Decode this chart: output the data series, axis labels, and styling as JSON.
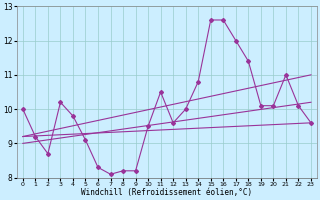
{
  "xlabel": "Windchill (Refroidissement éolien,°C)",
  "background_color": "#cceeff",
  "line_color": "#993399",
  "grid_color": "#99cccc",
  "xlim": [
    -0.5,
    23.5
  ],
  "ylim": [
    8,
    13
  ],
  "yticks": [
    8,
    9,
    10,
    11,
    12,
    13
  ],
  "xticks": [
    0,
    1,
    2,
    3,
    4,
    5,
    6,
    7,
    8,
    9,
    10,
    11,
    12,
    13,
    14,
    15,
    16,
    17,
    18,
    19,
    20,
    21,
    22,
    23
  ],
  "lines": [
    {
      "x": [
        0,
        1,
        2,
        3,
        4,
        5,
        6,
        7,
        8,
        9,
        10,
        11,
        12,
        13,
        14,
        15,
        16,
        17,
        18,
        19,
        20,
        21,
        22,
        23
      ],
      "y": [
        10.0,
        9.2,
        8.7,
        10.2,
        9.8,
        9.1,
        8.3,
        8.1,
        8.2,
        8.2,
        9.5,
        10.5,
        9.6,
        10.0,
        10.8,
        12.6,
        12.6,
        12.0,
        11.4,
        10.1,
        10.1,
        11.0,
        10.1,
        9.6
      ],
      "marker": true
    },
    {
      "x": [
        0,
        23
      ],
      "y": [
        9.2,
        11.0
      ],
      "marker": false
    },
    {
      "x": [
        0,
        23
      ],
      "y": [
        9.0,
        10.2
      ],
      "marker": false
    },
    {
      "x": [
        0,
        23
      ],
      "y": [
        9.2,
        9.6
      ],
      "marker": false
    }
  ]
}
